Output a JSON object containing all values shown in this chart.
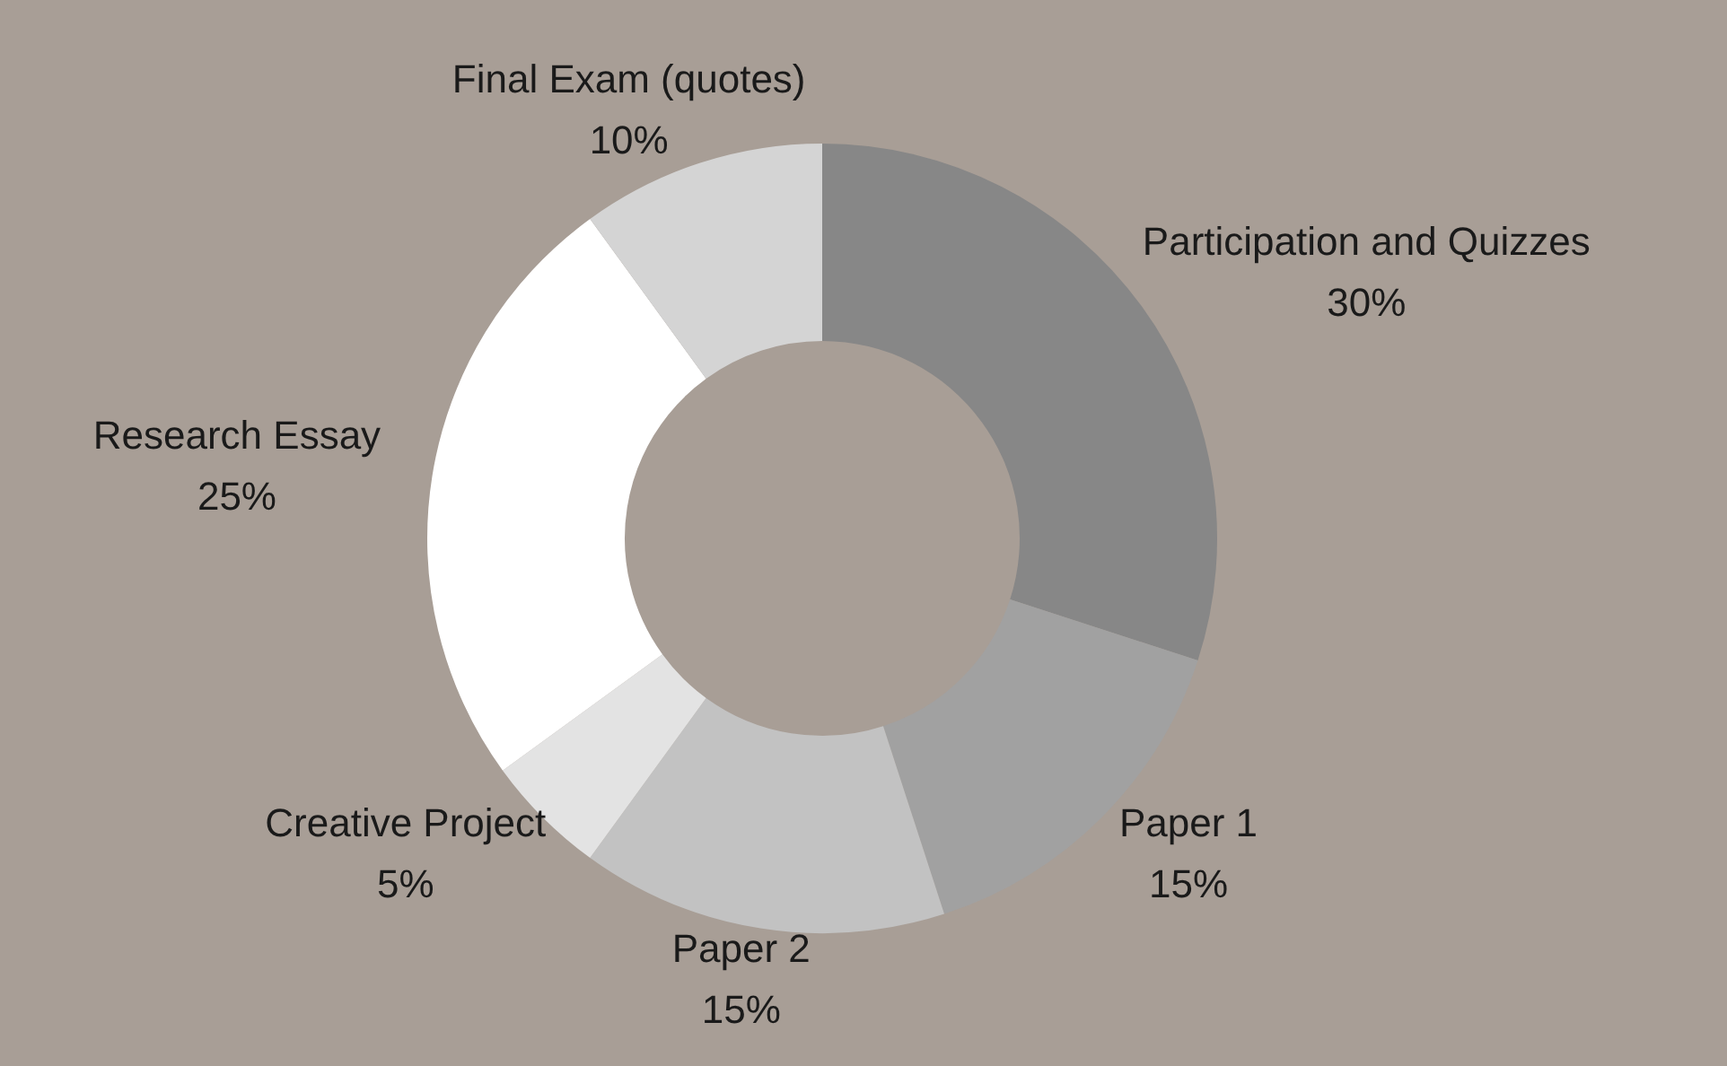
{
  "chart_data": {
    "type": "donut",
    "categories": [
      "Participation and Quizzes",
      "Paper 1",
      "Paper 2",
      "Creative Project",
      "Research Essay",
      "Final Exam (quotes)"
    ],
    "values": [
      30,
      15,
      15,
      5,
      25,
      10
    ],
    "colors": [
      "#878787",
      "#a1a1a1",
      "#c2c2c2",
      "#e3e3e3",
      "#ffffff",
      "#d4d4d4"
    ],
    "value_labels": [
      "30%",
      "15%",
      "15%",
      "5%",
      "25%",
      "10%"
    ],
    "legend": false
  }
}
